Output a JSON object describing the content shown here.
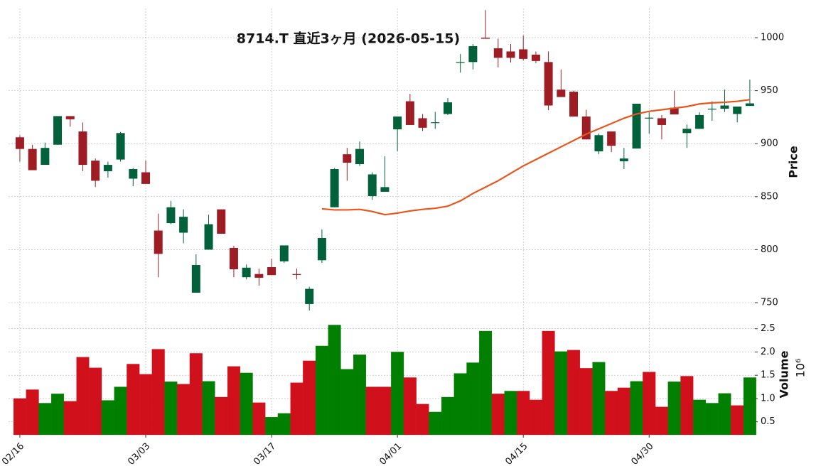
{
  "chart_data": {
    "type": "candlestick",
    "title": "8714.T  直近3ヶ月 (2026-05-15)",
    "categories": [
      "02/16",
      null,
      null,
      null,
      null,
      null,
      null,
      null,
      null,
      null,
      "03/03",
      null,
      null,
      null,
      null,
      null,
      null,
      null,
      null,
      null,
      "03/17",
      null,
      null,
      null,
      null,
      null,
      null,
      null,
      null,
      null,
      "04/01",
      null,
      null,
      null,
      null,
      null,
      null,
      null,
      null,
      null,
      "04/15",
      null,
      null,
      null,
      null,
      null,
      null,
      null,
      null,
      null,
      "04/30",
      null,
      null,
      null,
      null,
      null,
      null,
      null,
      null
    ],
    "open": [
      906,
      895,
      880,
      899,
      926,
      911.5,
      884,
      874,
      885,
      867,
      873,
      818,
      825,
      816,
      759.4,
      800,
      838,
      801.6,
      774,
      777,
      783.5,
      789,
      777,
      748.7,
      790,
      840,
      890,
      880.7,
      850.5,
      854.6,
      913.5,
      940,
      924,
      919.5,
      928,
      977,
      977,
      1000,
      990,
      987,
      989,
      984,
      977,
      951,
      949,
      925.6,
      892.8,
      911.5,
      883.4,
      895.4,
      924,
      924,
      934,
      910,
      914,
      933,
      933,
      928,
      935.6
    ],
    "high": [
      908,
      899,
      901,
      926,
      926,
      920,
      886,
      883,
      911,
      877,
      884,
      834,
      846,
      838,
      795.6,
      833,
      838,
      803.6,
      786,
      782,
      791.5,
      804,
      782,
      765,
      819,
      877,
      896,
      902,
      873,
      888,
      925.6,
      947,
      928,
      930,
      943,
      984.5,
      994,
      1026,
      999,
      994,
      1002,
      987,
      987,
      970,
      950,
      932,
      909.5,
      911.5,
      896,
      937.7,
      929.6,
      927,
      950,
      918,
      929.6,
      940,
      951,
      935,
      960.5
    ],
    "low": [
      883,
      875,
      880,
      899,
      916,
      874,
      859,
      868,
      883,
      860,
      862,
      774,
      824,
      806,
      759.4,
      800,
      815,
      774,
      772,
      766,
      776,
      787.5,
      772,
      742.6,
      787.5,
      840,
      865,
      879,
      847,
      854.6,
      893,
      917.6,
      912,
      914,
      927,
      967,
      970,
      999,
      972,
      976.5,
      978.5,
      976,
      931.6,
      944,
      925.6,
      904,
      890,
      892,
      876,
      895.4,
      909.5,
      904,
      927.6,
      896,
      914,
      921.6,
      930,
      920,
      935.6
    ],
    "close": [
      895,
      875,
      896,
      926,
      923,
      880,
      865,
      880,
      910,
      876,
      862,
      796,
      840,
      831,
      785.5,
      824,
      815,
      781.5,
      783,
      773.5,
      776,
      804,
      776.5,
      763,
      811,
      876,
      882,
      895,
      871,
      859,
      925.6,
      917.6,
      915,
      920.2,
      939,
      977,
      992,
      999,
      981,
      981,
      980,
      978,
      936,
      944,
      925.6,
      904,
      908,
      898,
      886,
      937.7,
      924.5,
      917.6,
      927.6,
      914,
      927,
      933,
      936,
      935,
      938
    ],
    "up_color": "#00613b",
    "down_color": "#9e1c24",
    "xlim": [
      -0.9,
      58.4
    ],
    "ylim": [
      738.6,
      1027.5
    ],
    "yticks": [
      750,
      800,
      850,
      900,
      950,
      1000
    ],
    "ylabel": "Price",
    "grid": true,
    "moving_average": {
      "color": "#e8561b",
      "values": [
        null,
        null,
        null,
        null,
        null,
        null,
        null,
        null,
        null,
        null,
        null,
        null,
        null,
        null,
        null,
        null,
        null,
        null,
        null,
        null,
        null,
        null,
        null,
        null,
        838.5,
        837.5,
        837.5,
        838,
        836,
        833,
        834.5,
        836.5,
        838,
        839,
        841,
        846,
        853,
        859,
        865,
        872,
        879,
        885,
        891,
        897,
        903,
        909,
        914,
        919,
        924,
        928,
        930.5,
        932,
        933.5,
        935,
        937.5,
        938.5,
        939,
        940,
        941.5
      ]
    },
    "volume": {
      "values": [
        1.0,
        1.19,
        0.9,
        1.1,
        0.94,
        1.89,
        1.66,
        0.96,
        1.25,
        1.74,
        1.52,
        2.06,
        1.36,
        1.31,
        1.97,
        1.37,
        1.03,
        1.69,
        1.55,
        0.91,
        0.6,
        0.68,
        1.34,
        1.81,
        2.13,
        2.58,
        1.63,
        1.94,
        1.25,
        1.25,
        2.0,
        1.45,
        0.88,
        0.71,
        1.03,
        1.54,
        1.77,
        2.45,
        1.1,
        1.16,
        1.16,
        0.97,
        2.45,
        2.01,
        2.04,
        1.65,
        1.78,
        1.16,
        1.23,
        1.37,
        1.57,
        0.82,
        1.36,
        1.48,
        0.97,
        0.9,
        1.11,
        0.85,
        1.45
      ],
      "up_color": "#007f00",
      "down_color": "#d0101a",
      "ylim": [
        0.22,
        2.74
      ],
      "yticks": [
        0.5,
        {
          "value": 1.0,
          "label": "1.0"
        },
        1.5,
        {
          "value": 2.0,
          "label": "2.0"
        },
        2.5
      ],
      "ylabel": "Volume",
      "offset_label": "10⁶"
    }
  }
}
